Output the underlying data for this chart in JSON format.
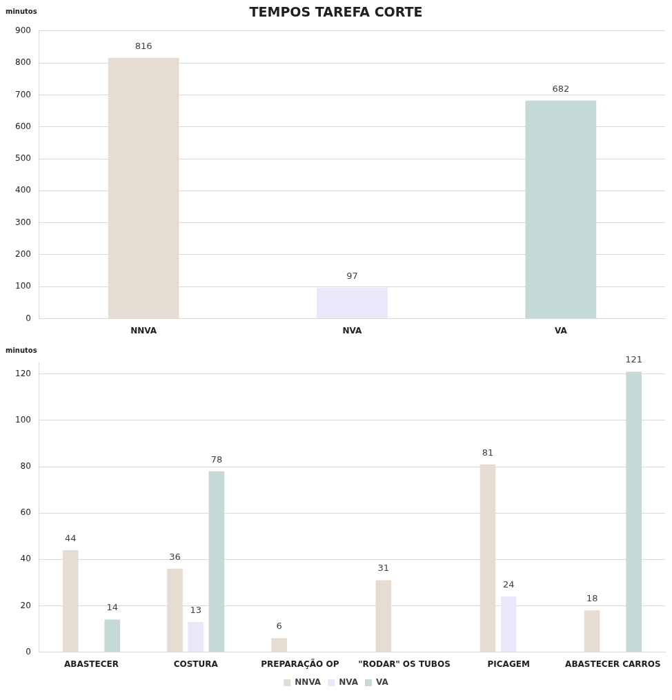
{
  "chart_data": [
    {
      "type": "bar",
      "title": "TEMPOS TAREFA CORTE",
      "ylabel": "minutos",
      "categories": [
        "NNVA",
        "NVA",
        "VA"
      ],
      "values": [
        816,
        97,
        682
      ],
      "colors": [
        "#e6dcd2",
        "#ece6fa",
        "#c5d9d6"
      ],
      "ylim": [
        0,
        900
      ],
      "yticks": [
        0,
        100,
        200,
        300,
        400,
        500,
        600,
        700,
        800,
        900
      ],
      "grid": "y",
      "data_labels": true
    },
    {
      "type": "bar",
      "ylabel": "minutos",
      "categories": [
        "ABASTECER",
        "COSTURA",
        "PREPARAÇÃO OP",
        "\"RODAR\" OS TUBOS",
        "PICAGEM",
        "ABASTECER CARROS"
      ],
      "series": [
        {
          "name": "NNVA",
          "color": "#e6dcd2",
          "values": [
            44,
            36,
            6,
            31,
            81,
            18
          ]
        },
        {
          "name": "NVA",
          "color": "#ece6fa",
          "values": [
            null,
            13,
            null,
            null,
            24,
            null
          ]
        },
        {
          "name": "VA",
          "color": "#c5d9d6",
          "values": [
            14,
            78,
            null,
            null,
            null,
            121
          ]
        }
      ],
      "ylim": [
        0,
        125
      ],
      "yticks": [
        0,
        20,
        40,
        60,
        80,
        100,
        120
      ],
      "grid": "y",
      "legend": "bottom",
      "data_labels": true
    }
  ]
}
